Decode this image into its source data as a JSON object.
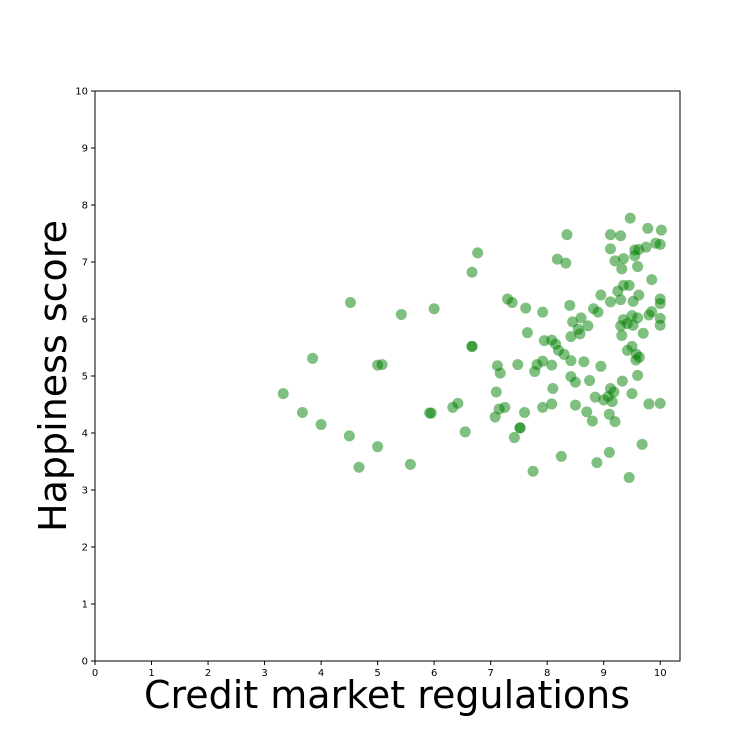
{
  "chart_data": {
    "type": "scatter",
    "title": "",
    "xlabel": "Credit market regulations",
    "ylabel": "Happiness score",
    "xlim": [
      0,
      10.35
    ],
    "ylim": [
      0,
      10
    ],
    "xticks": [
      0,
      1,
      2,
      3,
      4,
      5,
      6,
      7,
      8,
      9,
      10
    ],
    "yticks": [
      0,
      1,
      2,
      3,
      4,
      5,
      6,
      7,
      8,
      9,
      10
    ],
    "grid": false,
    "marker_color": "#008000",
    "marker_alpha": 0.5,
    "points": [
      [
        3.33,
        4.69
      ],
      [
        3.67,
        4.36
      ],
      [
        3.85,
        5.31
      ],
      [
        4.0,
        4.15
      ],
      [
        4.5,
        3.95
      ],
      [
        4.52,
        6.29
      ],
      [
        4.67,
        3.4
      ],
      [
        5.0,
        3.76
      ],
      [
        5.0,
        5.19
      ],
      [
        5.08,
        5.2
      ],
      [
        5.42,
        6.08
      ],
      [
        5.58,
        3.45
      ],
      [
        5.92,
        4.35
      ],
      [
        5.95,
        4.35
      ],
      [
        6.0,
        6.18
      ],
      [
        6.33,
        4.45
      ],
      [
        6.42,
        4.52
      ],
      [
        6.55,
        4.02
      ],
      [
        6.67,
        5.52
      ],
      [
        6.67,
        5.52
      ],
      [
        6.67,
        6.82
      ],
      [
        6.77,
        7.16
      ],
      [
        7.08,
        4.28
      ],
      [
        7.1,
        4.72
      ],
      [
        7.12,
        5.18
      ],
      [
        7.15,
        4.42
      ],
      [
        7.17,
        5.05
      ],
      [
        7.25,
        4.45
      ],
      [
        7.3,
        6.35
      ],
      [
        7.38,
        6.29
      ],
      [
        7.42,
        3.92
      ],
      [
        7.48,
        5.2
      ],
      [
        7.52,
        4.09
      ],
      [
        7.52,
        4.09
      ],
      [
        7.6,
        4.36
      ],
      [
        7.62,
        6.19
      ],
      [
        7.65,
        5.76
      ],
      [
        7.75,
        3.33
      ],
      [
        7.78,
        5.08
      ],
      [
        7.82,
        5.2
      ],
      [
        7.92,
        4.45
      ],
      [
        7.92,
        5.26
      ],
      [
        7.92,
        6.12
      ],
      [
        7.95,
        5.62
      ],
      [
        8.08,
        4.51
      ],
      [
        8.08,
        5.19
      ],
      [
        8.08,
        5.63
      ],
      [
        8.1,
        4.78
      ],
      [
        8.15,
        5.56
      ],
      [
        8.18,
        7.05
      ],
      [
        8.2,
        5.45
      ],
      [
        8.25,
        3.59
      ],
      [
        8.3,
        5.38
      ],
      [
        8.33,
        6.98
      ],
      [
        8.35,
        7.48
      ],
      [
        8.4,
        6.24
      ],
      [
        8.42,
        4.99
      ],
      [
        8.42,
        5.27
      ],
      [
        8.42,
        5.69
      ],
      [
        8.45,
        5.95
      ],
      [
        8.5,
        4.49
      ],
      [
        8.5,
        4.89
      ],
      [
        8.55,
        5.82
      ],
      [
        8.58,
        5.74
      ],
      [
        8.6,
        6.02
      ],
      [
        8.65,
        5.25
      ],
      [
        8.7,
        4.37
      ],
      [
        8.72,
        5.88
      ],
      [
        8.75,
        4.92
      ],
      [
        8.8,
        4.21
      ],
      [
        8.82,
        6.18
      ],
      [
        8.85,
        4.63
      ],
      [
        8.88,
        3.48
      ],
      [
        8.9,
        6.12
      ],
      [
        8.95,
        5.17
      ],
      [
        8.95,
        6.42
      ],
      [
        9.0,
        4.58
      ],
      [
        9.08,
        4.64
      ],
      [
        9.1,
        3.66
      ],
      [
        9.1,
        4.33
      ],
      [
        9.12,
        4.78
      ],
      [
        9.12,
        6.3
      ],
      [
        9.12,
        7.23
      ],
      [
        9.12,
        7.48
      ],
      [
        9.15,
        4.55
      ],
      [
        9.18,
        4.72
      ],
      [
        9.2,
        4.2
      ],
      [
        9.2,
        7.02
      ],
      [
        9.25,
        6.49
      ],
      [
        9.3,
        5.88
      ],
      [
        9.3,
        6.34
      ],
      [
        9.3,
        7.46
      ],
      [
        9.32,
        5.71
      ],
      [
        9.32,
        6.88
      ],
      [
        9.33,
        4.91
      ],
      [
        9.35,
        5.99
      ],
      [
        9.35,
        6.59
      ],
      [
        9.35,
        7.06
      ],
      [
        9.42,
        5.45
      ],
      [
        9.42,
        5.92
      ],
      [
        9.45,
        3.22
      ],
      [
        9.45,
        6.59
      ],
      [
        9.47,
        7.77
      ],
      [
        9.5,
        4.69
      ],
      [
        9.5,
        5.52
      ],
      [
        9.5,
        6.06
      ],
      [
        9.52,
        5.89
      ],
      [
        9.52,
        6.31
      ],
      [
        9.55,
        7.11
      ],
      [
        9.55,
        7.21
      ],
      [
        9.57,
        5.28
      ],
      [
        9.58,
        5.38
      ],
      [
        9.6,
        5.01
      ],
      [
        9.6,
        6.02
      ],
      [
        9.6,
        6.92
      ],
      [
        9.62,
        6.42
      ],
      [
        9.62,
        7.22
      ],
      [
        9.63,
        5.33
      ],
      [
        9.68,
        3.8
      ],
      [
        9.7,
        5.75
      ],
      [
        9.75,
        7.26
      ],
      [
        9.78,
        7.59
      ],
      [
        9.8,
        4.51
      ],
      [
        9.8,
        6.07
      ],
      [
        9.85,
        6.13
      ],
      [
        9.85,
        6.69
      ],
      [
        9.92,
        7.33
      ],
      [
        10.0,
        4.52
      ],
      [
        10.0,
        5.89
      ],
      [
        10.0,
        6.01
      ],
      [
        10.0,
        6.27
      ],
      [
        10.0,
        6.35
      ],
      [
        10.0,
        7.31
      ],
      [
        10.02,
        7.56
      ]
    ]
  }
}
